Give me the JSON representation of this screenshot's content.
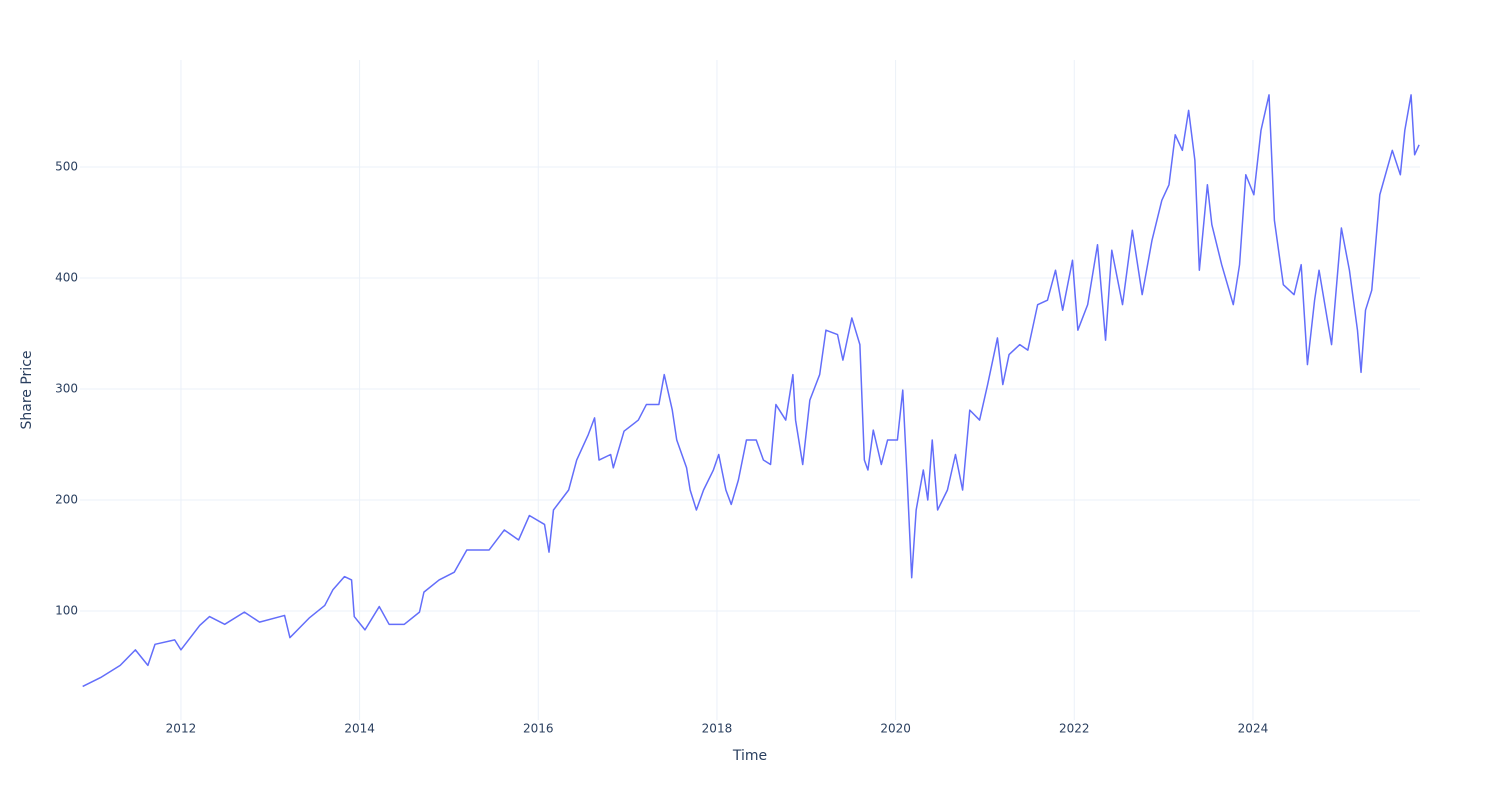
{
  "chart_data": {
    "type": "line",
    "x_label": "Time",
    "y_label": "Share Price",
    "x": [
      2010.9,
      2011.1,
      2011.32,
      2011.49,
      2011.63,
      2011.71,
      2011.93,
      2012.0,
      2012.21,
      2012.32,
      2012.49,
      2012.71,
      2012.88,
      2013.16,
      2013.22,
      2013.44,
      2013.61,
      2013.7,
      2013.83,
      2013.91,
      2013.94,
      2014.06,
      2014.22,
      2014.33,
      2014.5,
      2014.67,
      2014.72,
      2014.89,
      2015.06,
      2015.2,
      2015.45,
      2015.62,
      2015.78,
      2015.9,
      2016.07,
      2016.12,
      2016.17,
      2016.34,
      2016.43,
      2016.56,
      2016.63,
      2016.68,
      2016.81,
      2016.84,
      2016.96,
      2017.12,
      2017.21,
      2017.35,
      2017.41,
      2017.5,
      2017.55,
      2017.66,
      2017.7,
      2017.77,
      2017.85,
      2017.96,
      2018.02,
      2018.1,
      2018.16,
      2018.24,
      2018.33,
      2018.44,
      2018.52,
      2018.6,
      2018.66,
      2018.77,
      2018.85,
      2018.88,
      2018.96,
      2019.04,
      2019.15,
      2019.22,
      2019.35,
      2019.41,
      2019.51,
      2019.6,
      2019.65,
      2019.69,
      2019.75,
      2019.84,
      2019.91,
      2020.02,
      2020.08,
      2020.13,
      2020.18,
      2020.23,
      2020.31,
      2020.36,
      2020.41,
      2020.47,
      2020.58,
      2020.67,
      2020.75,
      2020.83,
      2020.94,
      2021.03,
      2021.14,
      2021.2,
      2021.27,
      2021.39,
      2021.48,
      2021.59,
      2021.7,
      2021.79,
      2021.87,
      2021.98,
      2022.04,
      2022.15,
      2022.26,
      2022.35,
      2022.42,
      2022.54,
      2022.65,
      2022.76,
      2022.87,
      2022.98,
      2023.06,
      2023.13,
      2023.21,
      2023.28,
      2023.35,
      2023.4,
      2023.49,
      2023.54,
      2023.65,
      2023.78,
      2023.85,
      2023.92,
      2024.01,
      2024.09,
      2024.18,
      2024.24,
      2024.34,
      2024.46,
      2024.54,
      2024.61,
      2024.69,
      2024.74,
      2024.88,
      2024.99,
      2025.08,
      2025.17,
      2025.21,
      2025.26,
      2025.33,
      2025.42,
      2025.56,
      2025.65,
      2025.7,
      2025.77,
      2025.81,
      2025.86
    ],
    "series": [
      {
        "name": "Share Price",
        "color": "#636efa",
        "values": [
          32,
          40,
          51,
          65,
          51,
          70,
          74,
          65,
          87,
          95,
          88,
          99,
          90,
          96,
          76,
          94,
          105,
          119,
          131,
          128,
          95,
          83,
          104,
          88,
          88,
          99,
          117,
          128,
          135,
          155,
          155,
          173,
          164,
          186,
          178,
          153,
          191,
          209,
          236,
          259,
          274,
          236,
          241,
          229,
          262,
          272,
          286,
          286,
          313,
          281,
          254,
          229,
          209,
          191,
          209,
          227,
          241,
          209,
          196,
          218,
          254,
          254,
          236,
          232,
          286,
          272,
          313,
          272,
          232,
          290,
          313,
          353,
          349,
          326,
          364,
          340,
          236,
          227,
          263,
          232,
          254,
          254,
          299,
          218,
          130,
          191,
          227,
          200,
          254,
          191,
          209,
          241,
          209,
          281,
          272,
          304,
          346,
          304,
          331,
          340,
          335,
          376,
          380,
          407,
          371,
          416,
          353,
          376,
          430,
          344,
          425,
          376,
          443,
          385,
          434,
          470,
          484,
          529,
          515,
          551,
          506,
          407,
          484,
          448,
          412,
          376,
          412,
          493,
          475,
          533,
          565,
          452,
          394,
          385,
          412,
          322,
          380,
          407,
          340,
          445,
          407,
          353,
          315,
          371,
          389,
          475,
          515,
          493,
          533,
          565,
          511,
          520
        ]
      }
    ],
    "xlim": [
      2010.87,
      2025.87
    ],
    "xticks": [
      2012,
      2014,
      2016,
      2018,
      2020,
      2022,
      2024
    ],
    "ylim": [
      1.8,
      596.4
    ],
    "yticks": [
      100,
      200,
      300,
      400,
      500
    ],
    "grid": true
  }
}
